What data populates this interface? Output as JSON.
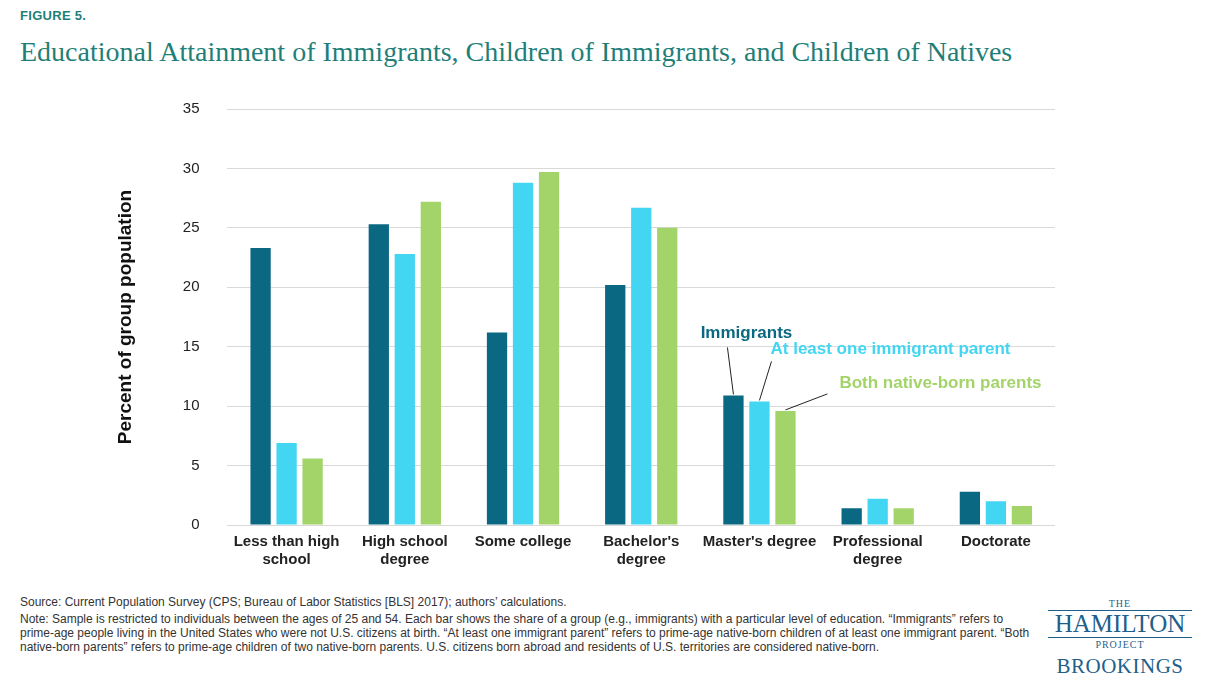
{
  "figure_label": "FIGURE 5.",
  "chart_data": {
    "type": "bar",
    "title": "Educational Attainment of Immigrants, Children of Immigrants, and Children of Natives",
    "y_label": "Percent of group population",
    "categories": [
      "Less than high school",
      "High school degree",
      "Some college",
      "Bachelor's degree",
      "Master's degree",
      "Professional degree",
      "Doctorate"
    ],
    "series": [
      {
        "name": "Immigrants",
        "color": "#0a6882",
        "values": [
          23.3,
          25.3,
          16.2,
          20.2,
          10.9,
          1.4,
          2.8
        ]
      },
      {
        "name": "At least one immigrant parent",
        "color": "#43d6f3",
        "values": [
          6.9,
          22.8,
          28.8,
          26.7,
          10.4,
          2.2,
          2.0
        ]
      },
      {
        "name": "Both native-born parents",
        "color": "#a3d46a",
        "values": [
          5.6,
          27.2,
          29.7,
          25.0,
          9.6,
          1.4,
          1.6
        ]
      }
    ],
    "ylim": [
      0,
      35
    ],
    "yticks": [
      0,
      5,
      10,
      15,
      20,
      25,
      30,
      35
    ],
    "grid": true
  },
  "source": "Source: Current Population Survey (CPS; Bureau of Labor Statistics [BLS] 2017); authors’ calculations.",
  "note": "Note: Sample is restricted to individuals between the ages of 25 and 54. Each bar shows the share of a group (e.g., immigrants) with a particular level of education. “Immigrants” refers to prime-age people living in the United States who were not U.S. citizens at birth. “At least one immigrant parent” refers to prime-age native-born children of at least one immigrant parent. “Both native-born parents” refers to prime-age children of two native-born parents. U.S. citizens born abroad and residents of U.S. territories are considered native-born.",
  "logo": {
    "top": "THE",
    "name": "HAMILTON",
    "bottom": "PROJECT",
    "org": "BROOKINGS"
  }
}
